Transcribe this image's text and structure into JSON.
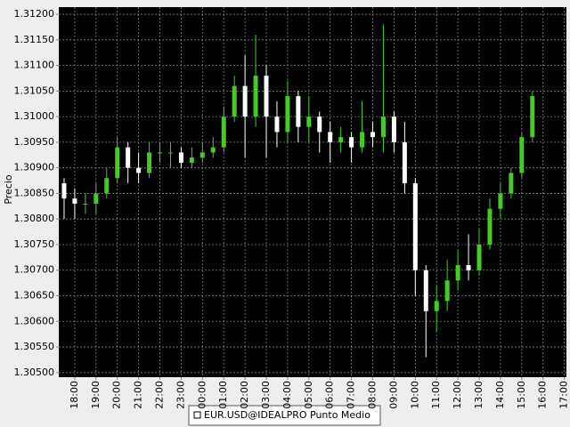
{
  "chart_data": {
    "type": "candlestick",
    "y_label": "Precio",
    "background": "#000000",
    "grid": true,
    "grid_color": "#808080",
    "legend": "bottom",
    "xlim": [
      17.25,
      41.1
    ],
    "xticks": [
      {
        "value": 18,
        "label": "18:00"
      },
      {
        "value": 19,
        "label": "19:00"
      },
      {
        "value": 20,
        "label": "20:00"
      },
      {
        "value": 21,
        "label": "21:00"
      },
      {
        "value": 22,
        "label": "22:00"
      },
      {
        "value": 23,
        "label": "23:00"
      },
      {
        "value": 24,
        "label": "00:00"
      },
      {
        "value": 25,
        "label": "01:00"
      },
      {
        "value": 26,
        "label": "02:00"
      },
      {
        "value": 27,
        "label": "03:00"
      },
      {
        "value": 28,
        "label": "04:00"
      },
      {
        "value": 29,
        "label": "05:00"
      },
      {
        "value": 30,
        "label": "06:00"
      },
      {
        "value": 31,
        "label": "07:00"
      },
      {
        "value": 32,
        "label": "08:00"
      },
      {
        "value": 33,
        "label": "09:00"
      },
      {
        "value": 34,
        "label": "10:00"
      },
      {
        "value": 35,
        "label": "11:00"
      },
      {
        "value": 36,
        "label": "12:00"
      },
      {
        "value": 37,
        "label": "13:00"
      },
      {
        "value": 38,
        "label": "14:00"
      },
      {
        "value": 39,
        "label": "15:00"
      },
      {
        "value": 40,
        "label": "16:00"
      },
      {
        "value": 41,
        "label": "17:00"
      }
    ],
    "ylim": [
      1.30491,
      1.31214
    ],
    "yticks": [
      {
        "value": 1.305,
        "label": "1.30500"
      },
      {
        "value": 1.3055,
        "label": "1.30550"
      },
      {
        "value": 1.306,
        "label": "1.30600"
      },
      {
        "value": 1.3065,
        "label": "1.30650"
      },
      {
        "value": 1.307,
        "label": "1.30700"
      },
      {
        "value": 1.3075,
        "label": "1.30750"
      },
      {
        "value": 1.308,
        "label": "1.30800"
      },
      {
        "value": 1.3085,
        "label": "1.30850"
      },
      {
        "value": 1.309,
        "label": "1.30900"
      },
      {
        "value": 1.3095,
        "label": "1.30950"
      },
      {
        "value": 1.31,
        "label": "1.31000"
      },
      {
        "value": 1.3105,
        "label": "1.31050"
      },
      {
        "value": 1.311,
        "label": "1.31100"
      },
      {
        "value": 1.3115,
        "label": "1.31150"
      },
      {
        "value": 1.312,
        "label": "1.31200"
      }
    ],
    "x": [
      17.5,
      18,
      18.5,
      19,
      19.5,
      20,
      20.5,
      21,
      21.5,
      22,
      22.5,
      23,
      23.5,
      24,
      24.5,
      25,
      25.5,
      26,
      26.5,
      27,
      27.5,
      28,
      28.5,
      29,
      29.5,
      30,
      30.5,
      31,
      31.5,
      32,
      32.5,
      33,
      33.5,
      34,
      34.5,
      35,
      35.5,
      36,
      36.5,
      37,
      37.5,
      38,
      38.5,
      39,
      39.5
    ],
    "series": [
      {
        "name": "EUR.USD@IDEALPRO Punto Medio",
        "up_color": "#44cc22",
        "down_color": "#ffffff",
        "open": [
          1.3087,
          1.3084,
          1.3083,
          1.3083,
          1.3085,
          1.3088,
          1.3094,
          1.309,
          1.3089,
          1.3093,
          1.3093,
          1.3093,
          1.3091,
          1.3092,
          1.3093,
          1.3094,
          1.31,
          1.3106,
          1.31,
          1.3108,
          1.31,
          1.3097,
          1.3104,
          1.3098,
          1.31,
          1.3097,
          1.3095,
          1.3096,
          1.3094,
          1.3097,
          1.3096,
          1.31,
          1.3095,
          1.3087,
          1.307,
          1.3062,
          1.3064,
          1.3068,
          1.3071,
          1.307,
          1.3075,
          1.3082,
          1.3085,
          1.3089,
          1.3096
        ],
        "high": [
          1.3088,
          1.3086,
          1.3085,
          1.3087,
          1.309,
          1.3096,
          1.3095,
          1.3093,
          1.3095,
          1.3095,
          1.3095,
          1.3094,
          1.3094,
          1.3095,
          1.3096,
          1.3102,
          1.3108,
          1.3112,
          1.3116,
          1.311,
          1.3103,
          1.3107,
          1.3105,
          1.3104,
          1.3101,
          1.3099,
          1.3098,
          1.3097,
          1.3103,
          1.3099,
          1.3118,
          1.3101,
          1.3099,
          1.3088,
          1.3071,
          1.3067,
          1.3072,
          1.3074,
          1.3077,
          1.3078,
          1.3084,
          1.3087,
          1.309,
          1.3097,
          1.3105
        ],
        "low": [
          1.308,
          1.308,
          1.3081,
          1.3081,
          1.3084,
          1.3087,
          1.3087,
          1.3087,
          1.3088,
          1.3091,
          1.309,
          1.309,
          1.309,
          1.3091,
          1.3092,
          1.3093,
          1.3099,
          1.3092,
          1.3098,
          1.3092,
          1.3094,
          1.3095,
          1.3095,
          1.3095,
          1.3093,
          1.3091,
          1.3093,
          1.3091,
          1.3093,
          1.3094,
          1.3093,
          1.3093,
          1.3085,
          1.3065,
          1.3053,
          1.3058,
          1.3062,
          1.3066,
          1.3068,
          1.3069,
          1.3074,
          1.308,
          1.3084,
          1.3088,
          1.3095
        ],
        "close": [
          1.3084,
          1.3083,
          1.3083,
          1.3085,
          1.3088,
          1.3094,
          1.309,
          1.3089,
          1.3093,
          1.3093,
          1.3093,
          1.3091,
          1.3092,
          1.3093,
          1.3094,
          1.31,
          1.3106,
          1.31,
          1.3108,
          1.31,
          1.3097,
          1.3104,
          1.3098,
          1.31,
          1.3097,
          1.3095,
          1.3096,
          1.3094,
          1.3097,
          1.3096,
          1.31,
          1.3095,
          1.3087,
          1.307,
          1.3062,
          1.3064,
          1.3068,
          1.3071,
          1.307,
          1.3075,
          1.3082,
          1.3085,
          1.3089,
          1.3096,
          1.3104
        ]
      }
    ]
  }
}
